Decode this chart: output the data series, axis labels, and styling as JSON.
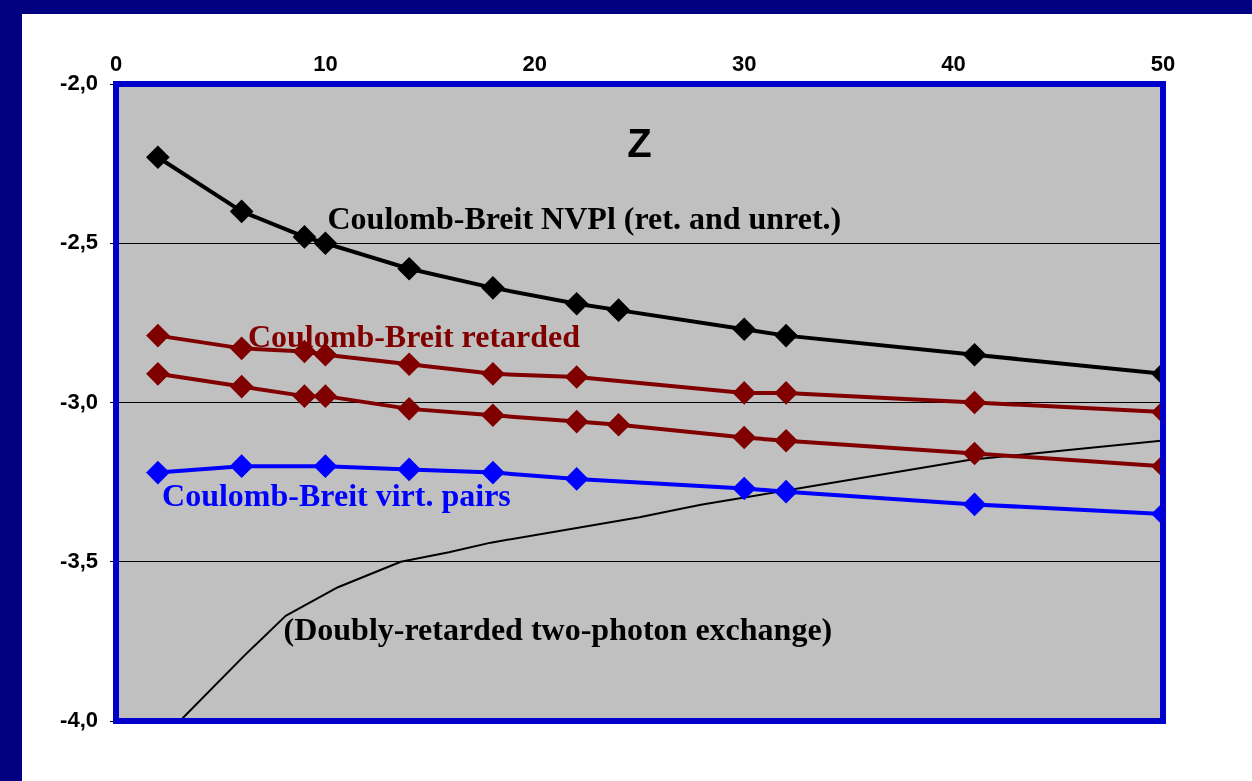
{
  "chart_data": {
    "type": "line",
    "xlabel": "Z",
    "x": [
      2,
      6,
      9,
      10,
      14,
      18,
      22,
      24,
      30,
      32,
      41,
      50
    ],
    "series": [
      {
        "name": "Coulomb-Breit NVPl (ret. and unret.)",
        "color": "#000000",
        "values": [
          -2.23,
          -2.4,
          -2.48,
          -2.5,
          -2.58,
          -2.64,
          -2.69,
          -2.71,
          -2.77,
          -2.79,
          -2.85,
          -2.91
        ]
      },
      {
        "name": "Coulomb-Breit retarded",
        "color": "#800000",
        "values": [
          -2.79,
          -2.83,
          -2.84,
          -2.85,
          -2.88,
          -2.91,
          -2.92,
          null,
          -2.97,
          -2.97,
          -3.0,
          -3.03
        ]
      },
      {
        "color": "#800000",
        "values": [
          -2.91,
          -2.95,
          -2.98,
          -2.98,
          -3.02,
          -3.04,
          -3.06,
          -3.07,
          -3.11,
          -3.12,
          -3.16,
          -3.2
        ]
      },
      {
        "name": "Coulomb-Breit virt. pairs",
        "color": "#0000ff",
        "values": [
          -3.22,
          -3.2,
          null,
          -3.2,
          -3.21,
          -3.22,
          -3.24,
          null,
          -3.27,
          -3.28,
          -3.32,
          -3.35
        ]
      },
      {
        "name": "(Doubly-retarded two-photon exchange)",
        "color": "#000000",
        "marker": "none",
        "x": [
          3.05,
          6.2,
          8.1,
          10.6,
          13.6,
          15.9,
          17.9,
          25.0,
          28.0,
          40.8,
          49.9
        ],
        "values": [
          -4.0,
          -3.79,
          -3.67,
          -3.58,
          -3.5,
          -3.47,
          -3.44,
          -3.36,
          -3.32,
          -3.18,
          -3.12
        ]
      }
    ],
    "xlim": [
      0,
      50
    ],
    "xticks": [
      0,
      10,
      20,
      30,
      40,
      50
    ],
    "ylim": [
      -4,
      -2
    ],
    "yticks": [
      {
        "value": -2,
        "label": "-2,0"
      },
      {
        "value": -2.5,
        "label": "-2,5"
      },
      {
        "value": -3,
        "label": "-3,0"
      },
      {
        "value": -3.5,
        "label": "-3,5"
      },
      {
        "value": -4,
        "label": "-4,0"
      }
    ],
    "grid": "y",
    "marker": "diamond",
    "legend": false
  }
}
